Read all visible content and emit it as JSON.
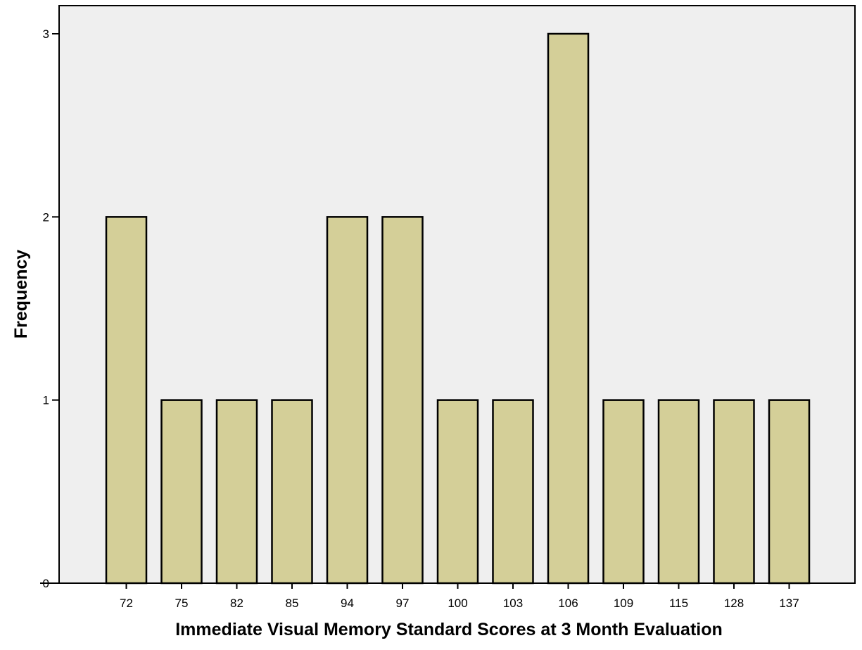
{
  "chart_data": {
    "type": "bar",
    "xlabel": "Immediate Visual Memory Standard Scores at 3 Month Evaluation",
    "ylabel": "Frequency",
    "categories": [
      "72",
      "75",
      "82",
      "85",
      "94",
      "97",
      "100",
      "103",
      "106",
      "109",
      "115",
      "128",
      "137"
    ],
    "values": [
      2,
      1,
      1,
      1,
      2,
      2,
      1,
      1,
      3,
      1,
      1,
      1,
      1
    ],
    "ylim": [
      0,
      3
    ],
    "yticks": [
      "0",
      "1",
      "2",
      "3"
    ],
    "grid": false,
    "colors": {
      "plot_background": "#efefef",
      "bar_fill": "#d4cf98",
      "bar_stroke": "#000000"
    }
  }
}
